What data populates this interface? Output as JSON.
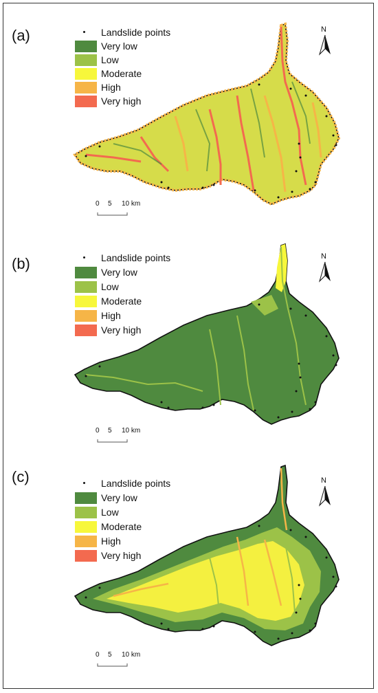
{
  "figure": {
    "panels": [
      {
        "label": "(a)",
        "legend": {
          "points_label": "Landslide points",
          "classes": [
            {
              "label": "Very low",
              "color": "#4f8a3f"
            },
            {
              "label": "Low",
              "color": "#9cc248"
            },
            {
              "label": "Moderate",
              "color": "#f7f73b"
            },
            {
              "label": "High",
              "color": "#f6b547"
            },
            {
              "label": "Very high",
              "color": "#f36a4f"
            }
          ]
        },
        "north": "N",
        "scale": {
          "ticks": [
            "0",
            "5",
            "10 km"
          ]
        },
        "map_fill": "#d6dc4a"
      },
      {
        "label": "(b)",
        "legend": {
          "points_label": "Landslide points",
          "classes": [
            {
              "label": "Very low",
              "color": "#4f8a3f"
            },
            {
              "label": "Low",
              "color": "#9cc248"
            },
            {
              "label": "Moderate",
              "color": "#f7f73b"
            },
            {
              "label": "High",
              "color": "#f6b547"
            },
            {
              "label": "Very high",
              "color": "#f36a4f"
            }
          ]
        },
        "north": "N",
        "scale": {
          "ticks": [
            "0",
            "5",
            "10 km"
          ]
        },
        "map_fill": "#4f8a3f"
      },
      {
        "label": "(c)",
        "legend": {
          "points_label": "Landslide points",
          "classes": [
            {
              "label": "Very low",
              "color": "#4f8a3f"
            },
            {
              "label": "Low",
              "color": "#9cc248"
            },
            {
              "label": "Moderate",
              "color": "#f7f73b"
            },
            {
              "label": "High",
              "color": "#f6b547"
            },
            {
              "label": "Very high",
              "color": "#f36a4f"
            }
          ]
        },
        "north": "N",
        "scale": {
          "ticks": [
            "0",
            "5",
            "10 km"
          ]
        },
        "map_fill": "#f4f040"
      }
    ]
  }
}
